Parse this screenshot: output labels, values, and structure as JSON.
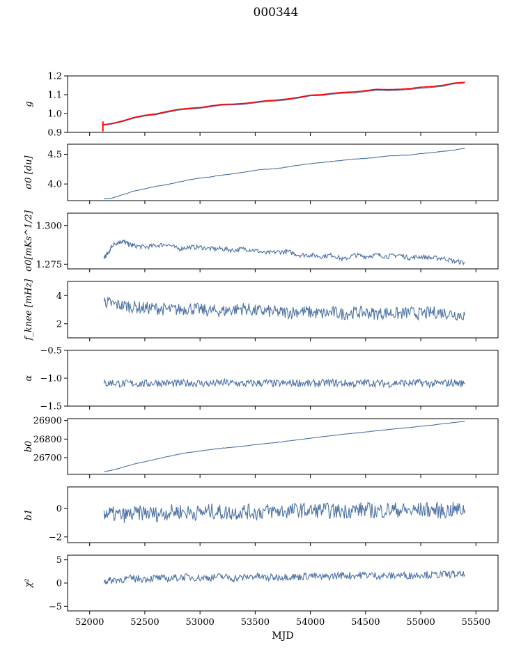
{
  "figure": {
    "title": "000344",
    "series_color": "#4c72a4",
    "fit_color": "#ff0000"
  },
  "chart_data": [
    {
      "type": "line",
      "id": "g",
      "ylabel": "g",
      "xlim": [
        51800,
        55700
      ],
      "ylim": [
        0.9,
        1.2
      ],
      "yticks": [
        0.9,
        1.0,
        1.1,
        1.2
      ],
      "ytick_labels": [
        "0.9",
        "1.0",
        "1.1",
        "1.2"
      ],
      "grid": false,
      "series": [
        {
          "x": [
            52115,
            52200,
            52300,
            52400,
            52500,
            52600,
            52700,
            52800,
            52900,
            53000,
            53100,
            53200,
            53300,
            53400,
            53500,
            53600,
            53700,
            53800,
            53900,
            54000,
            54100,
            54200,
            54300,
            54400,
            54500,
            54600,
            54700,
            54800,
            54900,
            55000,
            55100,
            55200,
            55300,
            55400
          ],
          "y": [
            0.937,
            0.944,
            0.957,
            0.975,
            0.987,
            0.994,
            1.006,
            1.018,
            1.024,
            1.028,
            1.036,
            1.045,
            1.046,
            1.049,
            1.057,
            1.064,
            1.067,
            1.073,
            1.083,
            1.094,
            1.096,
            1.103,
            1.108,
            1.11,
            1.117,
            1.124,
            1.122,
            1.124,
            1.128,
            1.134,
            1.139,
            1.145,
            1.158,
            1.163
          ]
        },
        {
          "x": [
            52115,
            52200,
            52300,
            52400,
            52500,
            52600,
            52700,
            52800,
            52900,
            53000,
            53100,
            53200,
            53300,
            53400,
            53500,
            53600,
            53700,
            53800,
            53900,
            54000,
            54100,
            54200,
            54300,
            54400,
            54500,
            54600,
            54700,
            54800,
            54900,
            55000,
            55100,
            55200,
            55300,
            55400
          ],
          "y": [
            0.94,
            0.947,
            0.961,
            0.979,
            0.991,
            0.998,
            1.011,
            1.022,
            1.028,
            1.032,
            1.041,
            1.049,
            1.05,
            1.054,
            1.061,
            1.068,
            1.072,
            1.078,
            1.087,
            1.098,
            1.1,
            1.108,
            1.113,
            1.115,
            1.122,
            1.129,
            1.127,
            1.129,
            1.133,
            1.14,
            1.144,
            1.15,
            1.162,
            1.166
          ]
        }
      ]
    },
    {
      "type": "line",
      "id": "sigma0_du",
      "ylabel": "σ0 [du]",
      "xlim": [
        51800,
        55700
      ],
      "ylim": [
        3.72,
        4.67
      ],
      "yticks": [
        4.0,
        4.5
      ],
      "ytick_labels": [
        "4.0",
        "4.5"
      ],
      "grid": false,
      "series": [
        {
          "x": [
            52130,
            52200,
            52300,
            52400,
            52500,
            52600,
            52700,
            52800,
            52900,
            53000,
            53100,
            53200,
            53300,
            53400,
            53500,
            53600,
            53700,
            53800,
            53900,
            54000,
            54100,
            54200,
            54300,
            54400,
            54500,
            54600,
            54700,
            54800,
            54900,
            55000,
            55100,
            55200,
            55300,
            55400
          ],
          "y": [
            3.75,
            3.76,
            3.82,
            3.88,
            3.92,
            3.96,
            3.99,
            4.03,
            4.07,
            4.1,
            4.12,
            4.15,
            4.17,
            4.2,
            4.23,
            4.25,
            4.26,
            4.29,
            4.32,
            4.34,
            4.36,
            4.38,
            4.4,
            4.42,
            4.43,
            4.45,
            4.47,
            4.48,
            4.49,
            4.51,
            4.53,
            4.55,
            4.57,
            4.6
          ]
        }
      ]
    },
    {
      "type": "line",
      "id": "sigma0_mK",
      "ylabel": "σ0[mKs^1/2]",
      "xlim": [
        51800,
        55700
      ],
      "ylim": [
        1.272,
        1.308
      ],
      "yticks": [
        1.275,
        1.3
      ],
      "ytick_labels": [
        "1.275",
        "1.300"
      ],
      "grid": false,
      "series": [
        {
          "x": [
            52130,
            52150,
            52180,
            52200,
            52250,
            52300,
            52350,
            52400,
            52500,
            52600,
            52700,
            52800,
            52900,
            53000,
            53100,
            53200,
            53300,
            53400,
            53500,
            53600,
            53700,
            53800,
            53900,
            54000,
            54100,
            54200,
            54300,
            54400,
            54500,
            54600,
            54700,
            54800,
            54900,
            55000,
            55100,
            55200,
            55300,
            55400
          ],
          "y": [
            1.279,
            1.281,
            1.283,
            1.287,
            1.289,
            1.29,
            1.288,
            1.287,
            1.286,
            1.287,
            1.288,
            1.285,
            1.286,
            1.286,
            1.285,
            1.285,
            1.284,
            1.285,
            1.284,
            1.282,
            1.283,
            1.283,
            1.281,
            1.281,
            1.28,
            1.281,
            1.278,
            1.281,
            1.28,
            1.281,
            1.28,
            1.281,
            1.279,
            1.28,
            1.279,
            1.279,
            1.277,
            1.276
          ]
        }
      ]
    },
    {
      "type": "line",
      "id": "fknee",
      "ylabel": "f_knee [mHz]",
      "xlim": [
        51800,
        55700
      ],
      "ylim": [
        1.0,
        5.0
      ],
      "yticks": [
        2,
        4
      ],
      "ytick_labels": [
        "2",
        "4"
      ],
      "grid": false,
      "series": [
        {
          "x": [
            52130,
            52200,
            52300,
            52400,
            52500,
            52600,
            52700,
            52800,
            52900,
            53000,
            53100,
            53200,
            53300,
            53400,
            53500,
            53600,
            53700,
            53800,
            53900,
            54000,
            54100,
            54200,
            54300,
            54400,
            54500,
            54600,
            54700,
            54800,
            54900,
            55000,
            55100,
            55200,
            55300,
            55400
          ],
          "y": [
            3.6,
            3.4,
            3.3,
            3.2,
            3.1,
            3.1,
            3.0,
            3.0,
            3.1,
            3.0,
            2.9,
            2.9,
            3.0,
            3.1,
            2.9,
            2.9,
            2.8,
            2.8,
            2.9,
            2.8,
            2.7,
            2.8,
            2.7,
            2.8,
            2.8,
            2.7,
            2.8,
            2.7,
            2.8,
            2.7,
            2.8,
            2.8,
            2.7,
            2.6
          ]
        }
      ]
    },
    {
      "type": "line",
      "id": "alpha",
      "ylabel": "α",
      "xlim": [
        51800,
        55700
      ],
      "ylim": [
        -1.5,
        -0.5
      ],
      "yticks": [
        -1.5,
        -1.0,
        -0.5
      ],
      "ytick_labels": [
        "−1.5",
        "−1.0",
        "−0.5"
      ],
      "grid": false,
      "series": [
        {
          "x": [
            52130,
            52200,
            52300,
            52400,
            52500,
            52600,
            52700,
            52800,
            52900,
            53000,
            53100,
            53200,
            53300,
            53400,
            53500,
            53600,
            53700,
            53800,
            53900,
            54000,
            54100,
            54200,
            54300,
            54400,
            54500,
            54600,
            54700,
            54800,
            54900,
            55000,
            55100,
            55200,
            55300,
            55400
          ],
          "y": [
            -1.1,
            -1.08,
            -1.1,
            -1.09,
            -1.1,
            -1.08,
            -1.09,
            -1.1,
            -1.08,
            -1.09,
            -1.1,
            -1.08,
            -1.09,
            -1.1,
            -1.09,
            -1.08,
            -1.1,
            -1.09,
            -1.08,
            -1.1,
            -1.09,
            -1.08,
            -1.09,
            -1.1,
            -1.08,
            -1.09,
            -1.1,
            -1.08,
            -1.09,
            -1.08,
            -1.1,
            -1.09,
            -1.08,
            -1.1
          ]
        }
      ]
    },
    {
      "type": "line",
      "id": "b0",
      "ylabel": "b0",
      "xlim": [
        51800,
        55700
      ],
      "ylim": [
        26610,
        26910
      ],
      "yticks": [
        26700,
        26800,
        26900
      ],
      "ytick_labels": [
        "26700",
        "26800",
        "26900"
      ],
      "grid": false,
      "series": [
        {
          "x": [
            52130,
            52200,
            52300,
            52400,
            52500,
            52600,
            52700,
            52800,
            52900,
            53000,
            53100,
            53200,
            53300,
            53400,
            53500,
            53600,
            53700,
            53800,
            53900,
            54000,
            54100,
            54200,
            54300,
            54400,
            54500,
            54600,
            54700,
            54800,
            54900,
            55000,
            55100,
            55200,
            55300,
            55400
          ],
          "y": [
            26625,
            26632,
            26648,
            26665,
            26678,
            26692,
            26705,
            26718,
            26728,
            26736,
            26744,
            26751,
            26756,
            26762,
            26770,
            26776,
            26782,
            26790,
            26797,
            26805,
            26812,
            26819,
            26826,
            26832,
            26838,
            26845,
            26851,
            26857,
            26862,
            26869,
            26875,
            26882,
            26889,
            26895
          ]
        }
      ]
    },
    {
      "type": "line",
      "id": "b1",
      "ylabel": "b1",
      "xlim": [
        51800,
        55700
      ],
      "ylim": [
        -2.4,
        1.5
      ],
      "yticks": [
        -2,
        0
      ],
      "ytick_labels": [
        "−2",
        "0"
      ],
      "grid": false,
      "series": [
        {
          "x": [
            52130,
            52200,
            52300,
            52400,
            52500,
            52600,
            52700,
            52800,
            52900,
            53000,
            53100,
            53200,
            53300,
            53400,
            53500,
            53600,
            53700,
            53800,
            53900,
            54000,
            54100,
            54200,
            54300,
            54400,
            54500,
            54600,
            54700,
            54800,
            54900,
            55000,
            55100,
            55200,
            55300,
            55400
          ],
          "y": [
            -0.3,
            -0.4,
            -0.5,
            -0.4,
            -0.3,
            -0.4,
            -0.3,
            -0.2,
            -0.3,
            -0.3,
            -0.2,
            -0.3,
            -0.3,
            -0.2,
            -0.3,
            -0.2,
            -0.2,
            -0.2,
            -0.1,
            -0.2,
            -0.1,
            -0.2,
            -0.2,
            -0.1,
            -0.1,
            -0.2,
            -0.1,
            -0.1,
            -0.2,
            -0.1,
            -0.1,
            -0.2,
            -0.1,
            -0.1
          ]
        }
      ]
    },
    {
      "type": "line",
      "id": "chi2",
      "ylabel": "χ²",
      "xlim": [
        51800,
        55700
      ],
      "ylim": [
        -6,
        6
      ],
      "yticks": [
        -5,
        0,
        5
      ],
      "ytick_labels": [
        "−5",
        "0",
        "5"
      ],
      "xticks": [
        52000,
        52500,
        53000,
        53500,
        54000,
        54500,
        55000,
        55500
      ],
      "xtick_labels": [
        "52000",
        "52500",
        "53000",
        "53500",
        "54000",
        "54500",
        "55000",
        "55500"
      ],
      "xlabel": "MJD",
      "grid": false,
      "series": [
        {
          "x": [
            52130,
            52200,
            52300,
            52400,
            52500,
            52600,
            52700,
            52800,
            52900,
            53000,
            53100,
            53200,
            53300,
            53400,
            53500,
            53600,
            53700,
            53800,
            53900,
            54000,
            54100,
            54200,
            54300,
            54400,
            54500,
            54600,
            54700,
            54800,
            54900,
            55000,
            55100,
            55200,
            55300,
            55400
          ],
          "y": [
            0.4,
            0.6,
            0.8,
            1.0,
            0.9,
            1.1,
            0.9,
            1.2,
            1.3,
            1.1,
            1.2,
            1.4,
            1.0,
            1.2,
            1.5,
            1.1,
            1.3,
            1.4,
            1.3,
            1.6,
            1.2,
            1.5,
            1.7,
            1.6,
            1.8,
            1.6,
            1.5,
            1.7,
            1.6,
            1.9,
            1.7,
            1.8,
            1.9,
            1.7
          ]
        }
      ]
    }
  ]
}
